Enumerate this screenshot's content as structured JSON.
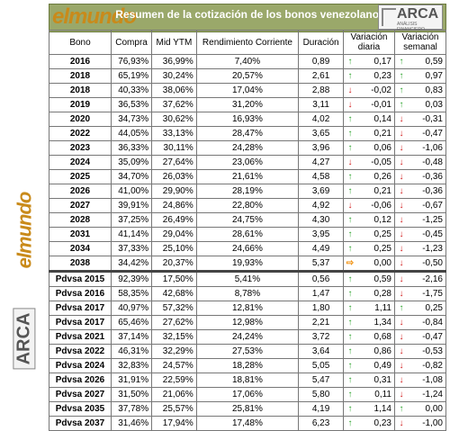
{
  "logos": {
    "elmundo": "elmundo",
    "arca": "ARCA",
    "arca_sub": "ANÁLISIS FINANCIERO"
  },
  "title": "Resumen de la cotización de los bonos venezolanos",
  "headers": [
    "Bono",
    "Compra",
    "Mid YTM",
    "Rendimiento Corriente",
    "Duración",
    "Variación diaria",
    "Variación semanal"
  ],
  "colors": {
    "header_bg": "#9aa86a",
    "up": "#2aa22a",
    "down": "#d01818",
    "flat": "#f08a00"
  },
  "rows": [
    {
      "bono": "2016",
      "compra": "76,93%",
      "ytm": "36,99%",
      "rend": "7,40%",
      "dur": "0,89",
      "dd": "up",
      "dv": "0,17",
      "sd": "up",
      "sv": "0,59"
    },
    {
      "bono": "2018",
      "compra": "65,19%",
      "ytm": "30,24%",
      "rend": "20,57%",
      "dur": "2,61",
      "dd": "up",
      "dv": "0,23",
      "sd": "up",
      "sv": "0,97"
    },
    {
      "bono": "2018",
      "compra": "40,33%",
      "ytm": "38,06%",
      "rend": "17,04%",
      "dur": "2,88",
      "dd": "down",
      "dv": "-0,02",
      "sd": "up",
      "sv": "0,83"
    },
    {
      "bono": "2019",
      "compra": "36,53%",
      "ytm": "37,62%",
      "rend": "31,20%",
      "dur": "3,11",
      "dd": "down",
      "dv": "-0,01",
      "sd": "up",
      "sv": "0,03"
    },
    {
      "bono": "2020",
      "compra": "34,73%",
      "ytm": "30,62%",
      "rend": "16,93%",
      "dur": "4,02",
      "dd": "up",
      "dv": "0,14",
      "sd": "down",
      "sv": "-0,31"
    },
    {
      "bono": "2022",
      "compra": "44,05%",
      "ytm": "33,13%",
      "rend": "28,47%",
      "dur": "3,65",
      "dd": "up",
      "dv": "0,21",
      "sd": "down",
      "sv": "-0,47"
    },
    {
      "bono": "2023",
      "compra": "36,33%",
      "ytm": "30,11%",
      "rend": "24,28%",
      "dur": "3,96",
      "dd": "up",
      "dv": "0,06",
      "sd": "down",
      "sv": "-1,06"
    },
    {
      "bono": "2024",
      "compra": "35,09%",
      "ytm": "27,64%",
      "rend": "23,06%",
      "dur": "4,27",
      "dd": "down",
      "dv": "-0,05",
      "sd": "down",
      "sv": "-0,48"
    },
    {
      "bono": "2025",
      "compra": "34,70%",
      "ytm": "26,03%",
      "rend": "21,61%",
      "dur": "4,58",
      "dd": "up",
      "dv": "0,26",
      "sd": "down",
      "sv": "-0,36"
    },
    {
      "bono": "2026",
      "compra": "41,00%",
      "ytm": "29,90%",
      "rend": "28,19%",
      "dur": "3,69",
      "dd": "up",
      "dv": "0,21",
      "sd": "down",
      "sv": "-0,36"
    },
    {
      "bono": "2027",
      "compra": "39,91%",
      "ytm": "24,86%",
      "rend": "22,80%",
      "dur": "4,92",
      "dd": "down",
      "dv": "-0,06",
      "sd": "down",
      "sv": "-0,67"
    },
    {
      "bono": "2028",
      "compra": "37,25%",
      "ytm": "26,49%",
      "rend": "24,75%",
      "dur": "4,30",
      "dd": "up",
      "dv": "0,12",
      "sd": "down",
      "sv": "-1,25"
    },
    {
      "bono": "2031",
      "compra": "41,14%",
      "ytm": "29,04%",
      "rend": "28,61%",
      "dur": "3,95",
      "dd": "up",
      "dv": "0,25",
      "sd": "down",
      "sv": "-0,45"
    },
    {
      "bono": "2034",
      "compra": "37,33%",
      "ytm": "25,10%",
      "rend": "24,66%",
      "dur": "4,49",
      "dd": "up",
      "dv": "0,25",
      "sd": "down",
      "sv": "-1,23"
    },
    {
      "bono": "2038",
      "compra": "34,42%",
      "ytm": "20,37%",
      "rend": "19,93%",
      "dur": "5,37",
      "dd": "flat",
      "dv": "0,00",
      "sd": "down",
      "sv": "-0,50"
    },
    {
      "bono": "Pdvsa 2015",
      "compra": "92,39%",
      "ytm": "17,50%",
      "rend": "5,41%",
      "dur": "0,56",
      "dd": "up",
      "dv": "0,59",
      "sd": "down",
      "sv": "-2,16"
    },
    {
      "bono": "Pdvsa 2016",
      "compra": "58,35%",
      "ytm": "42,68%",
      "rend": "8,78%",
      "dur": "1,47",
      "dd": "up",
      "dv": "0,28",
      "sd": "down",
      "sv": "-1,75"
    },
    {
      "bono": "Pdvsa 2017",
      "compra": "40,97%",
      "ytm": "57,32%",
      "rend": "12,81%",
      "dur": "1,80",
      "dd": "up",
      "dv": "1,11",
      "sd": "up",
      "sv": "0,25"
    },
    {
      "bono": "Pdvsa 2017",
      "compra": "65,46%",
      "ytm": "27,62%",
      "rend": "12,98%",
      "dur": "2,21",
      "dd": "up",
      "dv": "1,34",
      "sd": "down",
      "sv": "-0,84"
    },
    {
      "bono": "Pdvsa 2021",
      "compra": "37,14%",
      "ytm": "32,15%",
      "rend": "24,24%",
      "dur": "3,72",
      "dd": "up",
      "dv": "0,68",
      "sd": "down",
      "sv": "-0,47"
    },
    {
      "bono": "Pdvsa 2022",
      "compra": "46,31%",
      "ytm": "32,29%",
      "rend": "27,53%",
      "dur": "3,64",
      "dd": "up",
      "dv": "0,86",
      "sd": "down",
      "sv": "-0,53"
    },
    {
      "bono": "Pdvsa 2024",
      "compra": "32,83%",
      "ytm": "24,57%",
      "rend": "18,28%",
      "dur": "5,05",
      "dd": "up",
      "dv": "0,49",
      "sd": "down",
      "sv": "-0,82"
    },
    {
      "bono": "Pdvsa 2026",
      "compra": "31,91%",
      "ytm": "22,59%",
      "rend": "18,81%",
      "dur": "5,47",
      "dd": "up",
      "dv": "0,31",
      "sd": "down",
      "sv": "-1,08"
    },
    {
      "bono": "Pdvsa 2027",
      "compra": "31,50%",
      "ytm": "21,06%",
      "rend": "17,06%",
      "dur": "5,80",
      "dd": "up",
      "dv": "0,11",
      "sd": "down",
      "sv": "-1,24"
    },
    {
      "bono": "Pdvsa 2035",
      "compra": "37,78%",
      "ytm": "25,57%",
      "rend": "25,81%",
      "dur": "4,19",
      "dd": "up",
      "dv": "1,14",
      "sd": "up",
      "sv": "0,00"
    },
    {
      "bono": "Pdvsa 2037",
      "compra": "31,46%",
      "ytm": "17,94%",
      "rend": "17,48%",
      "dur": "6,23",
      "dd": "up",
      "dv": "0,23",
      "sd": "down",
      "sv": "-1,00"
    }
  ]
}
